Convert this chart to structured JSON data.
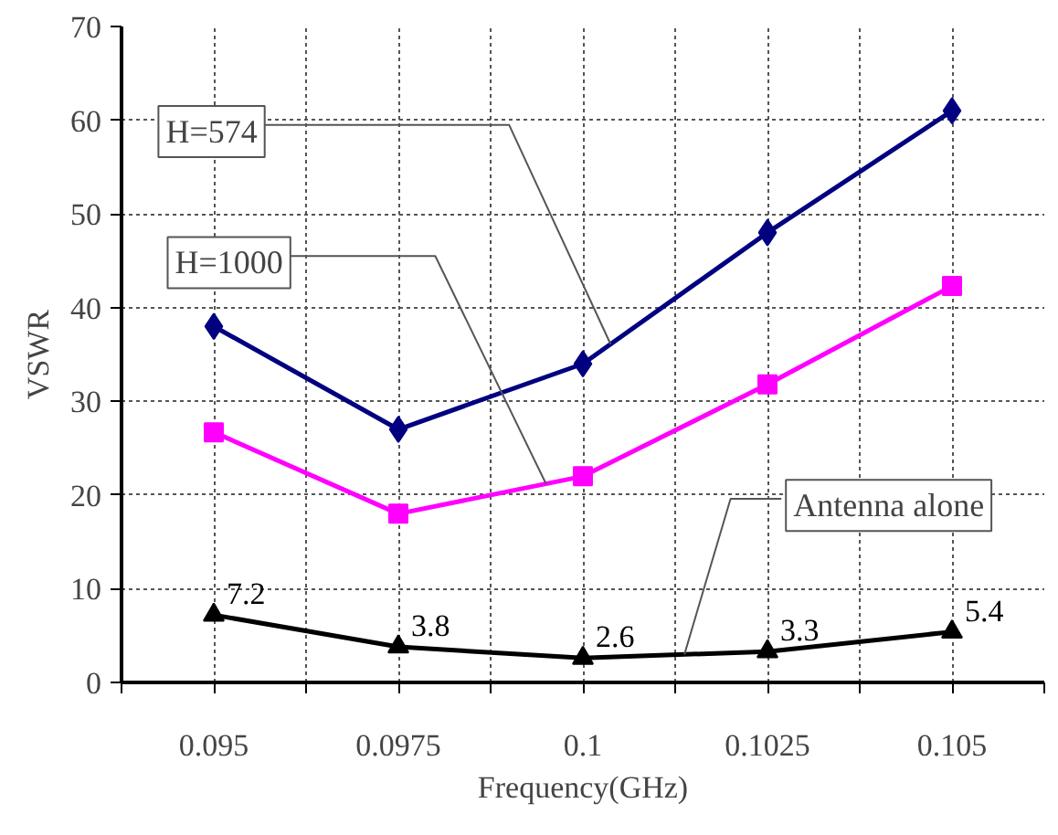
{
  "chart_data": {
    "type": "line",
    "xlabel": "Frequency(GHz)",
    "ylabel": "VSWR",
    "x": [
      0.095,
      0.0975,
      0.1,
      0.1025,
      0.105
    ],
    "series": [
      {
        "name": "H=574",
        "color": "#000080",
        "marker": "diamond",
        "values": [
          38,
          27,
          34,
          48,
          61
        ]
      },
      {
        "name": "H=1000",
        "color": "#ff00ff",
        "marker": "square",
        "values": [
          26.7,
          18,
          22,
          31.8,
          42.3
        ]
      },
      {
        "name": "Antenna alone",
        "color": "#000000",
        "marker": "triangle",
        "values": [
          7.2,
          3.8,
          2.6,
          3.3,
          5.4
        ],
        "value_labels": [
          "7.2",
          "3.8",
          "2.6",
          "3.3",
          "5.4"
        ]
      }
    ],
    "xlim": [
      0.09375,
      0.10625
    ],
    "xticks": [
      {
        "value": 0.09375,
        "label": null
      },
      0.095,
      {
        "value": 0.09625,
        "label": null
      },
      0.0975,
      {
        "value": 0.09875,
        "label": null
      },
      0.1,
      {
        "value": 0.10125,
        "label": null
      },
      0.1025,
      {
        "value": 0.10375,
        "label": null
      },
      0.105,
      {
        "value": 0.10625,
        "label": null
      }
    ],
    "ylim": [
      0,
      70
    ],
    "yticks": [
      0,
      10,
      20,
      30,
      40,
      50,
      60,
      70
    ],
    "grid": true
  }
}
